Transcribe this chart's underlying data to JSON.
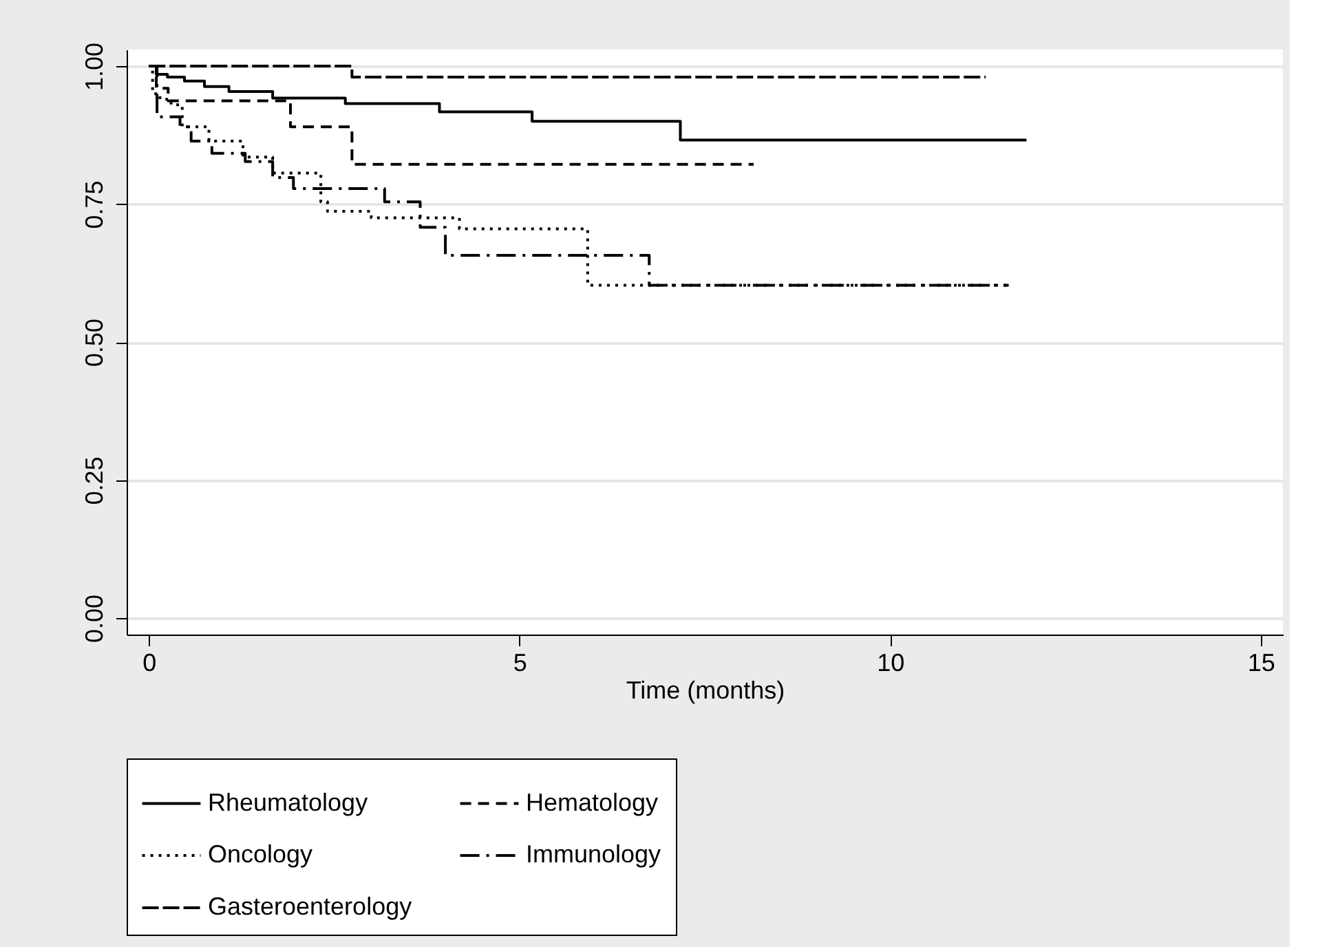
{
  "chart_data": {
    "type": "step",
    "xlabel": "Time (months)",
    "xlim": [
      -0.3,
      15.3
    ],
    "ylim": [
      -0.03,
      1.03
    ],
    "xticks": [
      0,
      5,
      10,
      15
    ],
    "yticks": [
      {
        "value": 0,
        "label": "0.00"
      },
      {
        "value": 0.25,
        "label": "0.25"
      },
      {
        "value": 0.5,
        "label": "0.50"
      },
      {
        "value": 0.75,
        "label": "0.75"
      },
      {
        "value": 1,
        "label": "1.00"
      }
    ],
    "grid": "y",
    "legend": "bottom",
    "series": [
      {
        "name": "Rheumatology",
        "color": "#000000",
        "line_style": "solid",
        "x": [
          0,
          0.1,
          0.25,
          0.48,
          0.75,
          1.08,
          1.67,
          2.65,
          3.92,
          5.17,
          7.17,
          11.84
        ],
        "values": [
          1.0,
          0.985,
          0.98,
          0.973,
          0.963,
          0.954,
          0.942,
          0.932,
          0.917,
          0.9,
          0.866,
          0.866
        ]
      },
      {
        "name": "Hematology",
        "color": "#000000",
        "line_style": "dashed",
        "x": [
          0,
          0.1,
          0.26,
          1.91,
          2.74,
          8.16
        ],
        "values": [
          1.0,
          0.96,
          0.937,
          0.89,
          0.822,
          0.822
        ]
      },
      {
        "name": "Oncology",
        "color": "#000000",
        "line_style": "dotted",
        "x": [
          0,
          0.05,
          0.15,
          0.3,
          0.45,
          0.81,
          1.27,
          1.67,
          2.32,
          2.41,
          3.0,
          4.19,
          5.92,
          11.6
        ],
        "values": [
          1.0,
          0.95,
          0.94,
          0.93,
          0.89,
          0.864,
          0.835,
          0.806,
          0.754,
          0.737,
          0.725,
          0.705,
          0.603,
          0.603
        ]
      },
      {
        "name": "Immunology",
        "color": "#000000",
        "line_style": "dashdot",
        "x": [
          0,
          0.11,
          0.42,
          0.57,
          0.85,
          1.3,
          1.67,
          1.95,
          3.18,
          3.66,
          4.0,
          6.75,
          11.6
        ],
        "values": [
          1.0,
          0.908,
          0.89,
          0.864,
          0.842,
          0.827,
          0.798,
          0.778,
          0.754,
          0.708,
          0.657,
          0.603,
          0.603
        ]
      },
      {
        "name": "Gasteroenterology",
        "color": "#000000",
        "line_style": "longdash",
        "x": [
          0,
          2.74,
          11.29
        ],
        "values": [
          1.0,
          0.98,
          0.98
        ]
      }
    ]
  }
}
